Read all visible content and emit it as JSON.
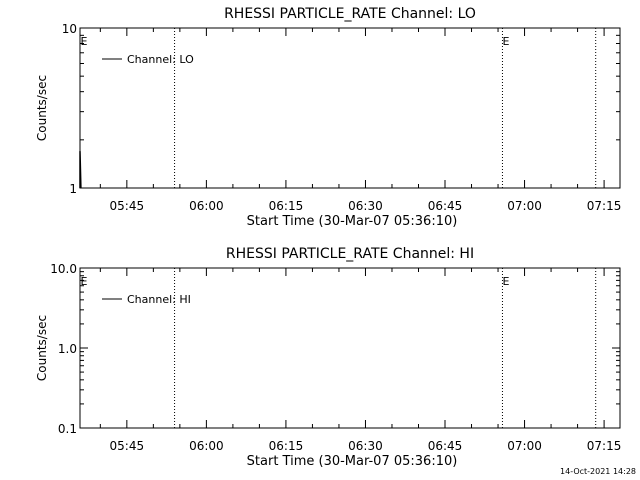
{
  "chart_data": [
    {
      "type": "line",
      "title": "RHESSI PARTICLE_RATE Channel: LO",
      "xlabel": "Start Time (30-Mar-07 05:36:10)",
      "ylabel": "Counts/sec",
      "yscale": "log",
      "ylim": [
        1,
        10
      ],
      "y_ticks": [
        "1",
        "10"
      ],
      "xlim": [
        "05:36:10",
        "07:18:00"
      ],
      "x_ticks": [
        "05:45",
        "06:00",
        "06:15",
        "06:30",
        "06:45",
        "07:00",
        "07:15"
      ],
      "legend": {
        "position": "top-left",
        "entries": [
          "Channel: LO"
        ]
      },
      "series": [
        {
          "name": "Channel: LO",
          "x": [
            "05:36:10",
            "05:36:10",
            "05:36:20"
          ],
          "y": [
            1.0,
            1.7,
            1.0
          ]
        }
      ],
      "flag_markers": [
        {
          "time": "05:36:15",
          "label": "E"
        },
        {
          "time": "06:55:50",
          "label": "E"
        }
      ],
      "dotted_lines": [
        "05:54:00",
        "06:55:50",
        "07:13:25"
      ]
    },
    {
      "type": "line",
      "title": "RHESSI PARTICLE_RATE Channel: HI",
      "xlabel": "Start Time (30-Mar-07 05:36:10)",
      "ylabel": "Counts/sec",
      "yscale": "log",
      "ylim": [
        0.1,
        10
      ],
      "y_ticks": [
        "0.1",
        "1.0",
        "10.0"
      ],
      "xlim": [
        "05:36:10",
        "07:18:00"
      ],
      "x_ticks": [
        "05:45",
        "06:00",
        "06:15",
        "06:30",
        "06:45",
        "07:00",
        "07:15"
      ],
      "legend": {
        "position": "top-left",
        "entries": [
          "Channel: HI"
        ]
      },
      "series": [
        {
          "name": "Channel: HI",
          "x": [],
          "y": []
        }
      ],
      "flag_markers": [
        {
          "time": "05:36:15",
          "label": "E"
        },
        {
          "time": "06:55:50",
          "label": "E"
        }
      ],
      "dotted_lines": [
        "05:54:00",
        "06:55:50",
        "07:13:25"
      ]
    }
  ],
  "footer": {
    "timestamp": "14-Oct-2021 14:28"
  }
}
